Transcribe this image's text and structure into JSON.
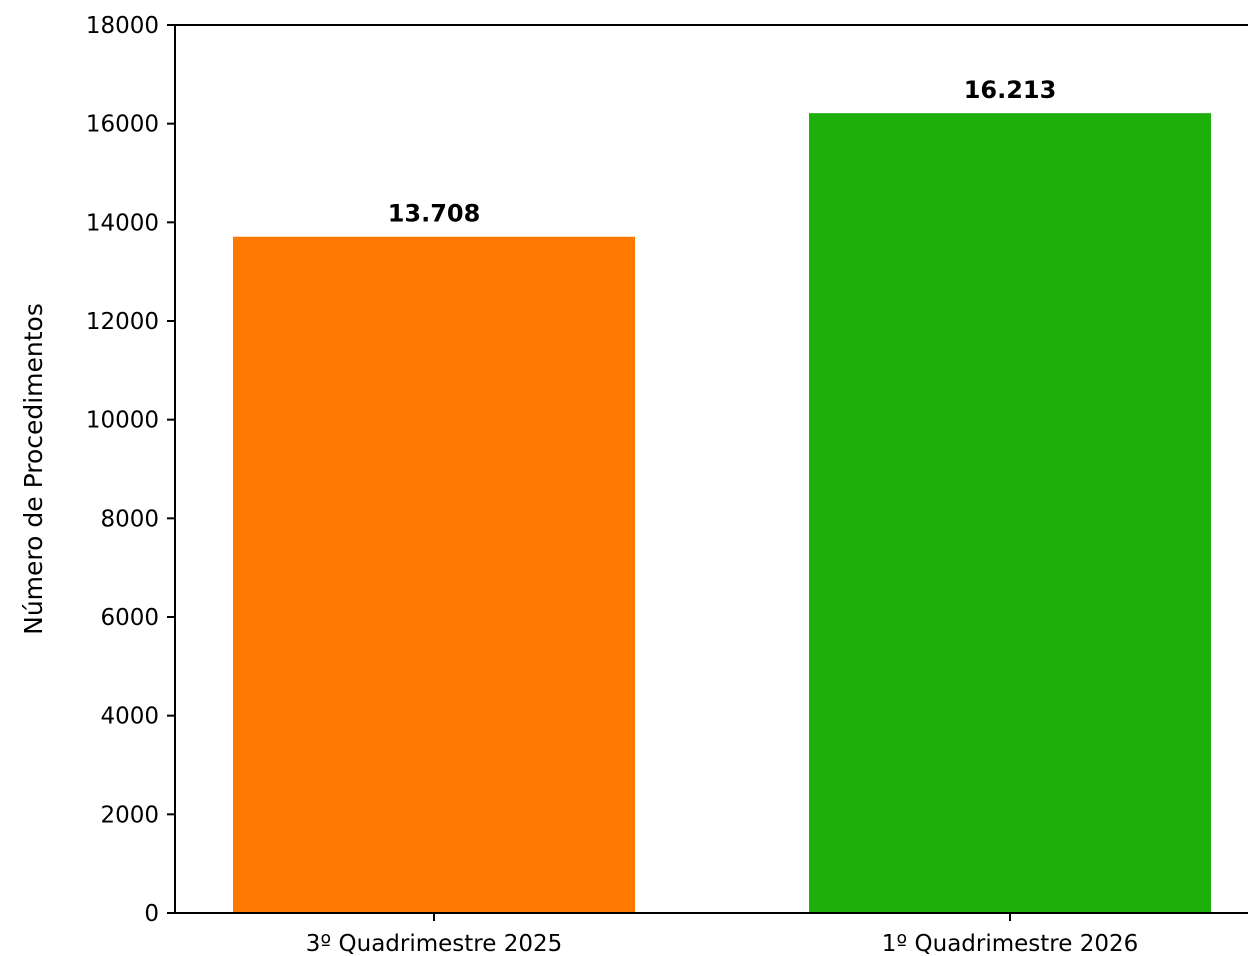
{
  "chart_data": {
    "type": "bar",
    "title": "",
    "xlabel": "",
    "ylabel": "Número de Procedimentos",
    "categories": [
      "3º Quadrimestre 2025",
      "1º Quadrimestre 2026"
    ],
    "values": [
      13708,
      16213
    ],
    "data_labels": [
      "13.708",
      "16.213"
    ],
    "colors": [
      "#ff7800",
      "#1eb00a"
    ],
    "ylim": [
      0,
      18000
    ],
    "yticks": [
      0,
      2000,
      4000,
      6000,
      8000,
      10000,
      12000,
      14000,
      16000,
      18000
    ],
    "ytick_labels": [
      "0",
      "2000",
      "4000",
      "6000",
      "8000",
      "10000",
      "12000",
      "14000",
      "16000",
      "18000"
    ],
    "grid": false,
    "legend": "none"
  }
}
